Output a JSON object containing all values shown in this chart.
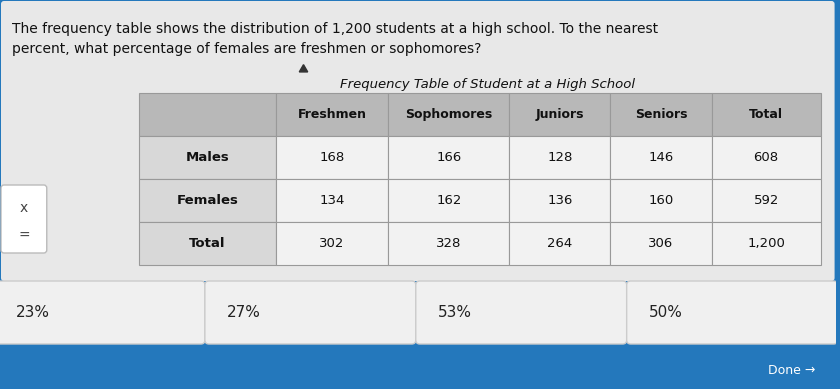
{
  "title": "Frequency Table of Student at a High School",
  "question_text_line1": "The frequency table shows the distribution of 1,200 students at a high school. To the nearest",
  "question_text_line2": "percent, what percentage of females are freshmen or sophomores?",
  "col_headers": [
    "",
    "Freshmen",
    "Sophomores",
    "Juniors",
    "Seniors",
    "Total"
  ],
  "rows": [
    [
      "Males",
      "168",
      "166",
      "128",
      "146",
      "608"
    ],
    [
      "Females",
      "134",
      "162",
      "136",
      "160",
      "592"
    ],
    [
      "Total",
      "302",
      "328",
      "264",
      "306",
      "1,200"
    ]
  ],
  "answer_choices": [
    "23%",
    "27%",
    "53%",
    "50%"
  ],
  "bg_color_outer": "#2478bc",
  "bg_color_panel": "#e8e8e8",
  "table_header_bg": "#b8b8b8",
  "table_row1_bg": "#f2f2f2",
  "table_row_label_bg": "#d8d8d8",
  "table_border_color": "#999999",
  "answer_box_bg": "#f0f0f0",
  "title_fontsize": 9.5,
  "question_fontsize": 10,
  "table_header_fontsize": 9,
  "table_data_fontsize": 9.5,
  "answer_fontsize": 11,
  "done_text": "Done →",
  "side_label_x": "x",
  "side_label_eq": "="
}
